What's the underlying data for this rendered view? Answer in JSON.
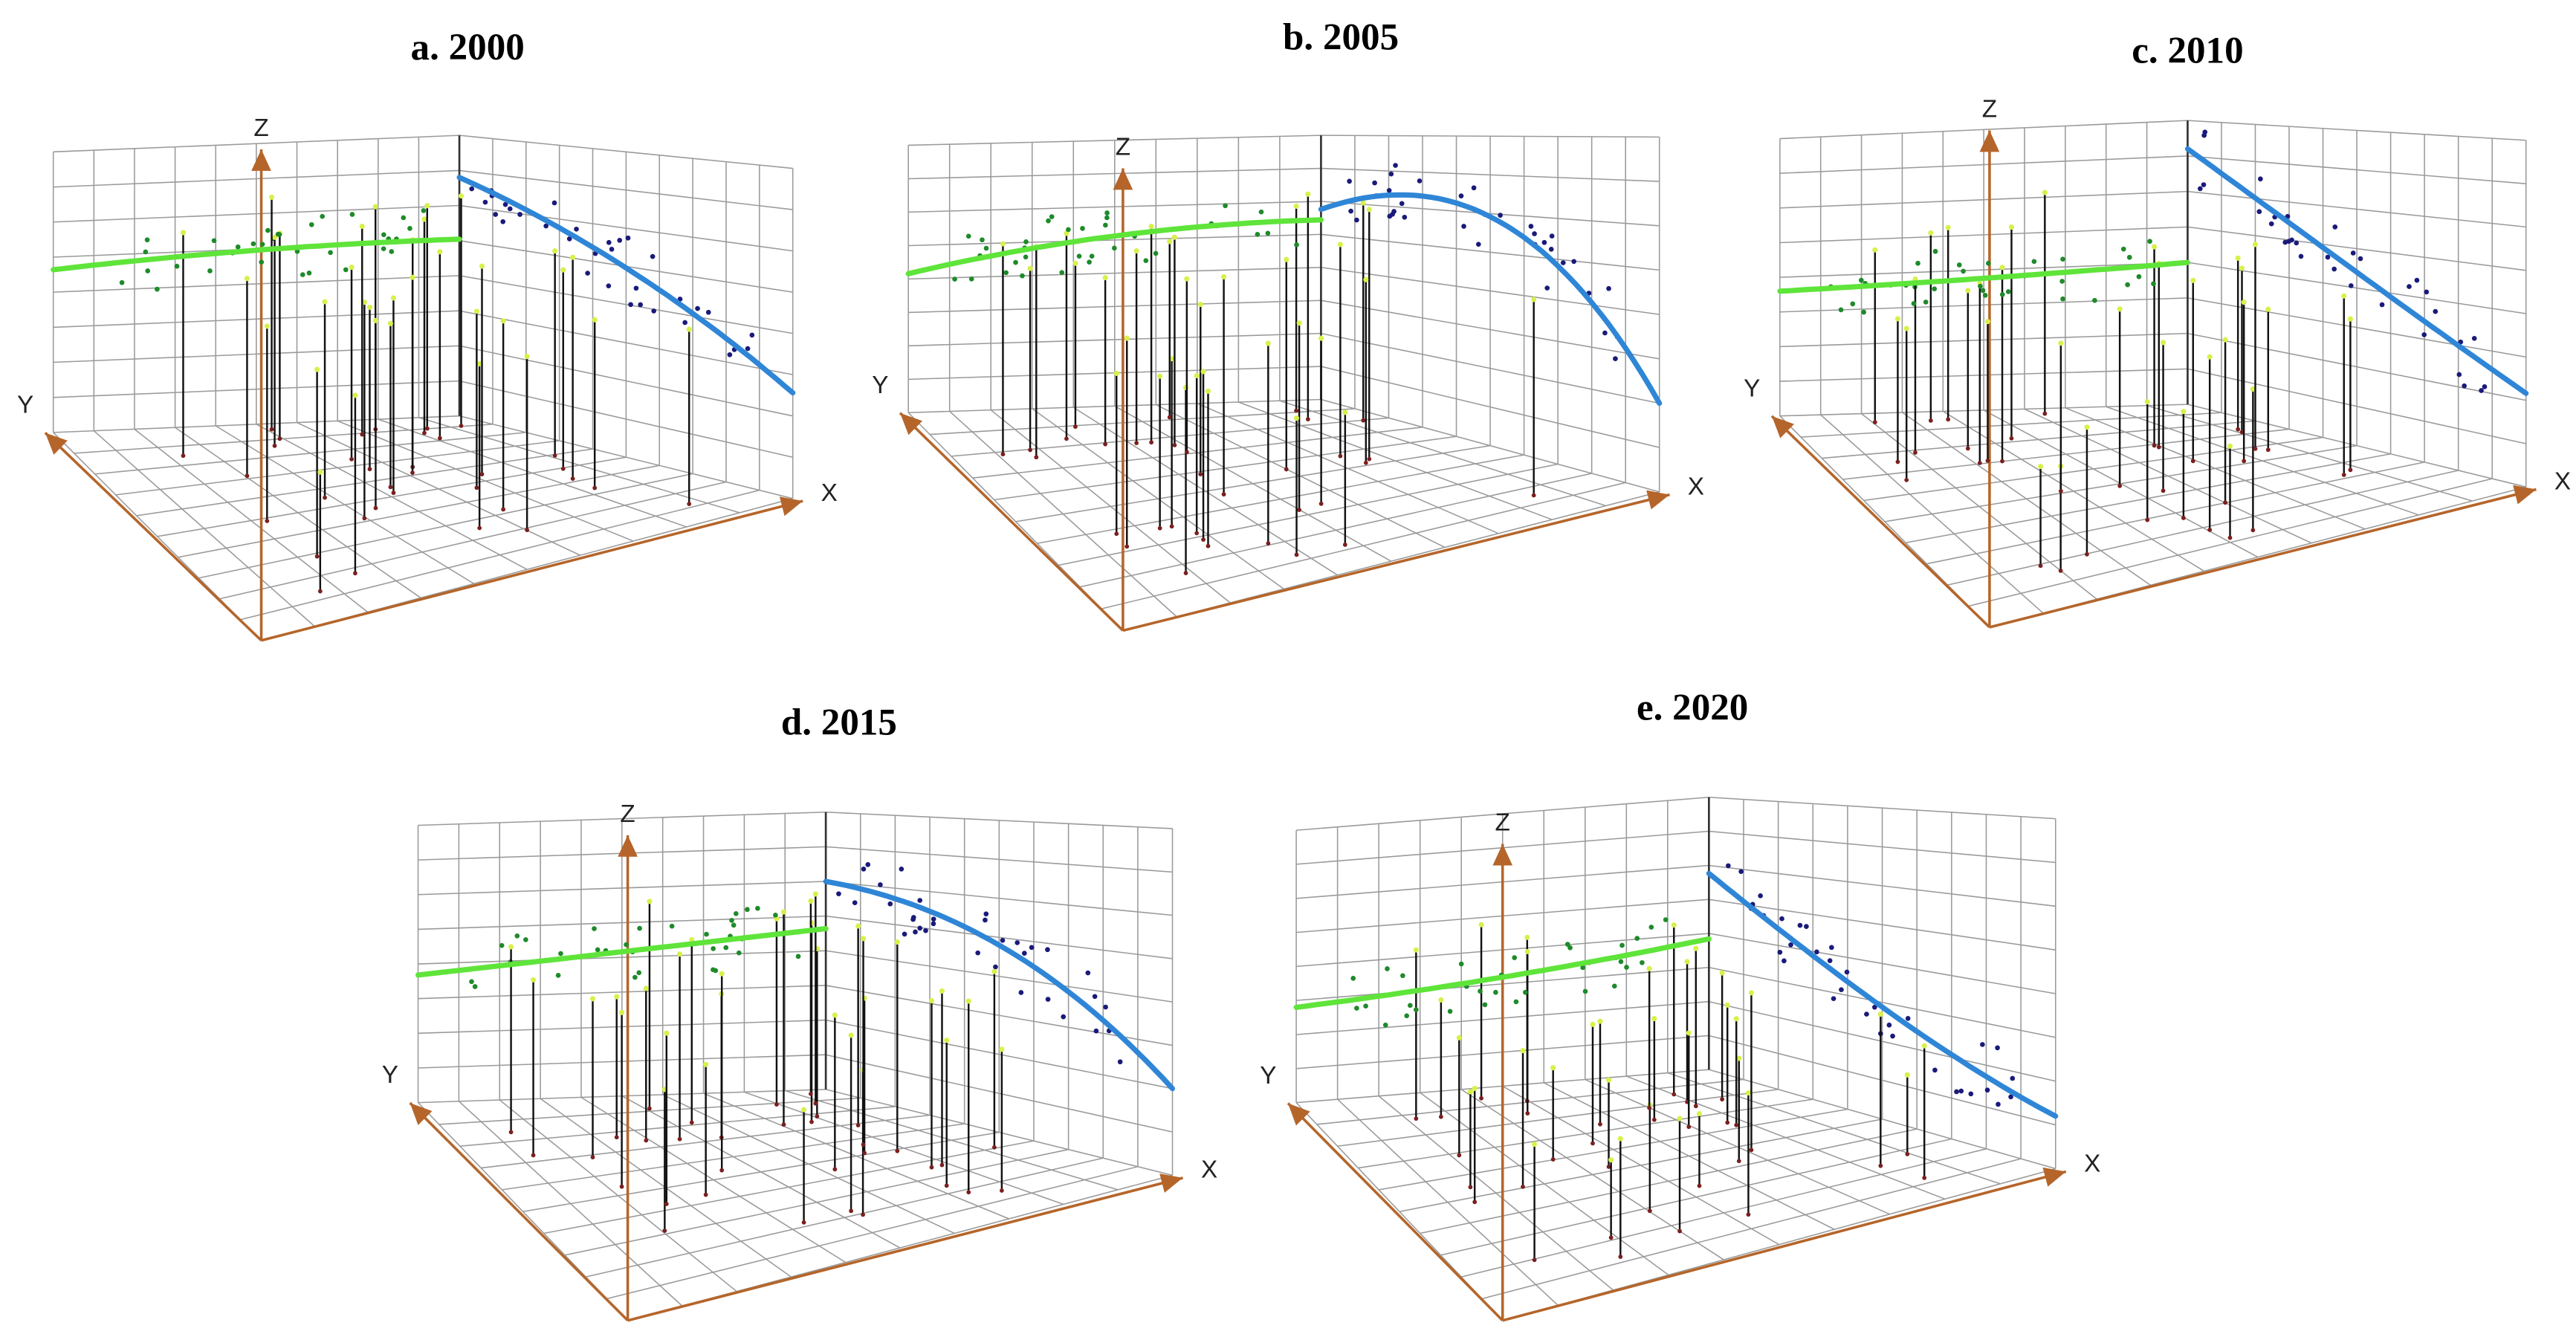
{
  "panels": [
    {
      "title": "a. 2000",
      "z_label": "Z",
      "y_label": "Y",
      "x_label": "X"
    },
    {
      "title": "b. 2005",
      "z_label": "Z",
      "y_label": "Y",
      "x_label": "X"
    },
    {
      "title": "c. 2010",
      "z_label": "Z",
      "y_label": "Y",
      "x_label": "X"
    },
    {
      "title": "d. 2015",
      "z_label": "Z",
      "y_label": "Y",
      "x_label": "X"
    },
    {
      "title": "e. 2020",
      "z_label": "Z",
      "y_label": "Y",
      "x_label": "X"
    }
  ]
}
